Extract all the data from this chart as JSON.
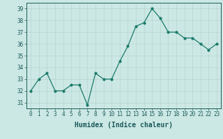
{
  "x": [
    0,
    1,
    2,
    3,
    4,
    5,
    6,
    7,
    8,
    9,
    10,
    11,
    12,
    13,
    14,
    15,
    16,
    17,
    18,
    19,
    20,
    21,
    22,
    23
  ],
  "y": [
    32,
    33,
    33.5,
    32,
    32,
    32.5,
    32.5,
    30.8,
    33.5,
    33,
    33,
    34.5,
    35.8,
    37.5,
    37.8,
    39,
    38.2,
    37,
    37,
    36.5,
    36.5,
    36,
    35.5,
    36
  ],
  "line_color": "#1a7a6a",
  "bg_color": "#cce8e4",
  "grid_color": "#b8d4d0",
  "xlabel": "Humidex (Indice chaleur)",
  "ylim": [
    30.5,
    39.5
  ],
  "yticks": [
    31,
    32,
    33,
    34,
    35,
    36,
    37,
    38,
    39
  ],
  "xticks": [
    0,
    1,
    2,
    3,
    4,
    5,
    6,
    7,
    8,
    9,
    10,
    11,
    12,
    13,
    14,
    15,
    16,
    17,
    18,
    19,
    20,
    21,
    22,
    23
  ],
  "tick_color": "#1a5a5a",
  "label_fontsize": 7,
  "tick_fontsize": 5.5
}
